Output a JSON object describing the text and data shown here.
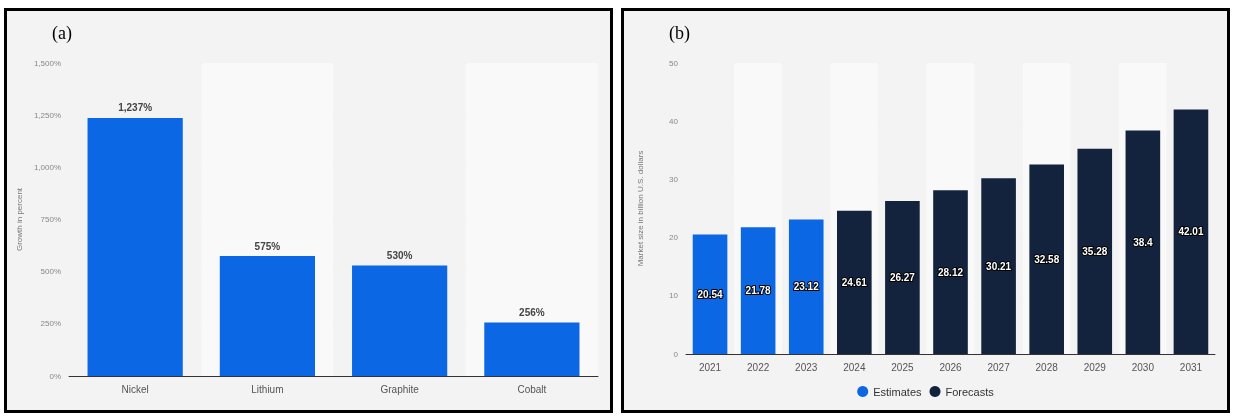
{
  "chart_data": [
    {
      "type": "bar",
      "title": "(a)",
      "ylabel": "Growth in percent",
      "categories": [
        "Nickel",
        "Lithium",
        "Graphite",
        "Cobalt"
      ],
      "series": [
        {
          "color": "#0b67e3",
          "values": [
            1237,
            575,
            530,
            256
          ],
          "value_labels": [
            "1,237%",
            "575%",
            "530%",
            "256%"
          ]
        }
      ],
      "ylim": [
        0,
        1500
      ],
      "yticks": [
        {
          "value": 0,
          "label": "0%"
        },
        {
          "value": 250,
          "label": "250%"
        },
        {
          "value": 500,
          "label": "500%"
        },
        {
          "value": 750,
          "label": "750%"
        },
        {
          "value": 1000,
          "label": "1,000%"
        },
        {
          "value": 1250,
          "label": "1,250%"
        },
        {
          "value": 1500,
          "label": "1,500%"
        }
      ],
      "grid": "y",
      "legend": false
    },
    {
      "type": "bar",
      "title": "(b)",
      "ylabel": "Market size in billion U.S. dollars",
      "categories": [
        "2021",
        "2022",
        "2023",
        "2024",
        "2025",
        "2026",
        "2027",
        "2028",
        "2029",
        "2030",
        "2031"
      ],
      "series": [
        {
          "name": "Estimates",
          "color": "#0b67e3",
          "values": [
            20.54,
            21.78,
            23.12,
            null,
            null,
            null,
            null,
            null,
            null,
            null,
            null
          ]
        },
        {
          "name": "Forecasts",
          "color": "#13233e",
          "values": [
            null,
            null,
            null,
            24.61,
            26.27,
            28.12,
            30.21,
            32.58,
            35.28,
            38.4,
            42.01
          ]
        }
      ],
      "ylim": [
        0,
        50
      ],
      "yticks": [
        0,
        10,
        20,
        30,
        40,
        50
      ],
      "grid": "y",
      "legend": "bottom",
      "data_labels": true
    }
  ]
}
